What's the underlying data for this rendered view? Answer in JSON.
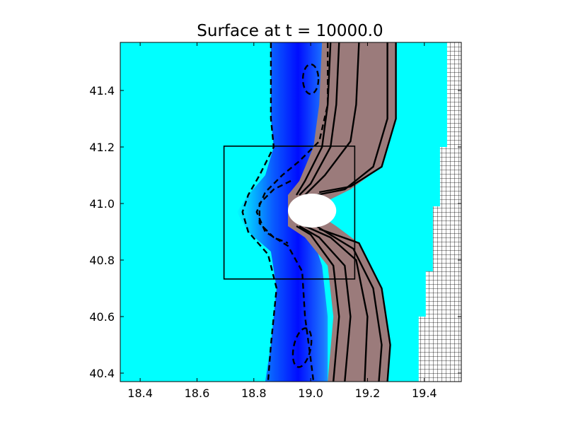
{
  "chart_data": {
    "type": "heatmap",
    "title": "Surface at t =  10000.0",
    "xlabel": "",
    "ylabel": "",
    "xlim": [
      18.33,
      19.53
    ],
    "ylim": [
      40.37,
      41.57
    ],
    "x_ticks": [
      "18.4",
      "18.6",
      "18.8",
      "19.0",
      "19.2",
      "19.4"
    ],
    "y_ticks": [
      "40.4",
      "40.6",
      "40.8",
      "41.0",
      "41.2",
      "41.4"
    ],
    "grid": false,
    "colors": {
      "background": "#00ffff",
      "depression": "#0000ff",
      "elevation": "#ff0000",
      "island": "#ffffff",
      "contour": "#000000"
    },
    "inset_box": {
      "x": [
        18.695,
        19.155
      ],
      "y": [
        40.733,
        41.203
      ]
    },
    "island": {
      "center": [
        19.005,
        40.975
      ],
      "radius_x": 0.085,
      "radius_y": 0.06
    },
    "refined_grid_column": {
      "steps": [
        {
          "x_start": 19.48,
          "y_from": 41.2,
          "y_to": 41.57
        },
        {
          "x_start": 19.455,
          "y_from": 40.99,
          "y_to": 41.2
        },
        {
          "x_start": 19.43,
          "y_from": 40.76,
          "y_to": 40.99
        },
        {
          "x_start": 19.405,
          "y_from": 40.6,
          "y_to": 40.76
        },
        {
          "x_start": 19.38,
          "y_from": 40.37,
          "y_to": 40.6
        }
      ]
    }
  }
}
